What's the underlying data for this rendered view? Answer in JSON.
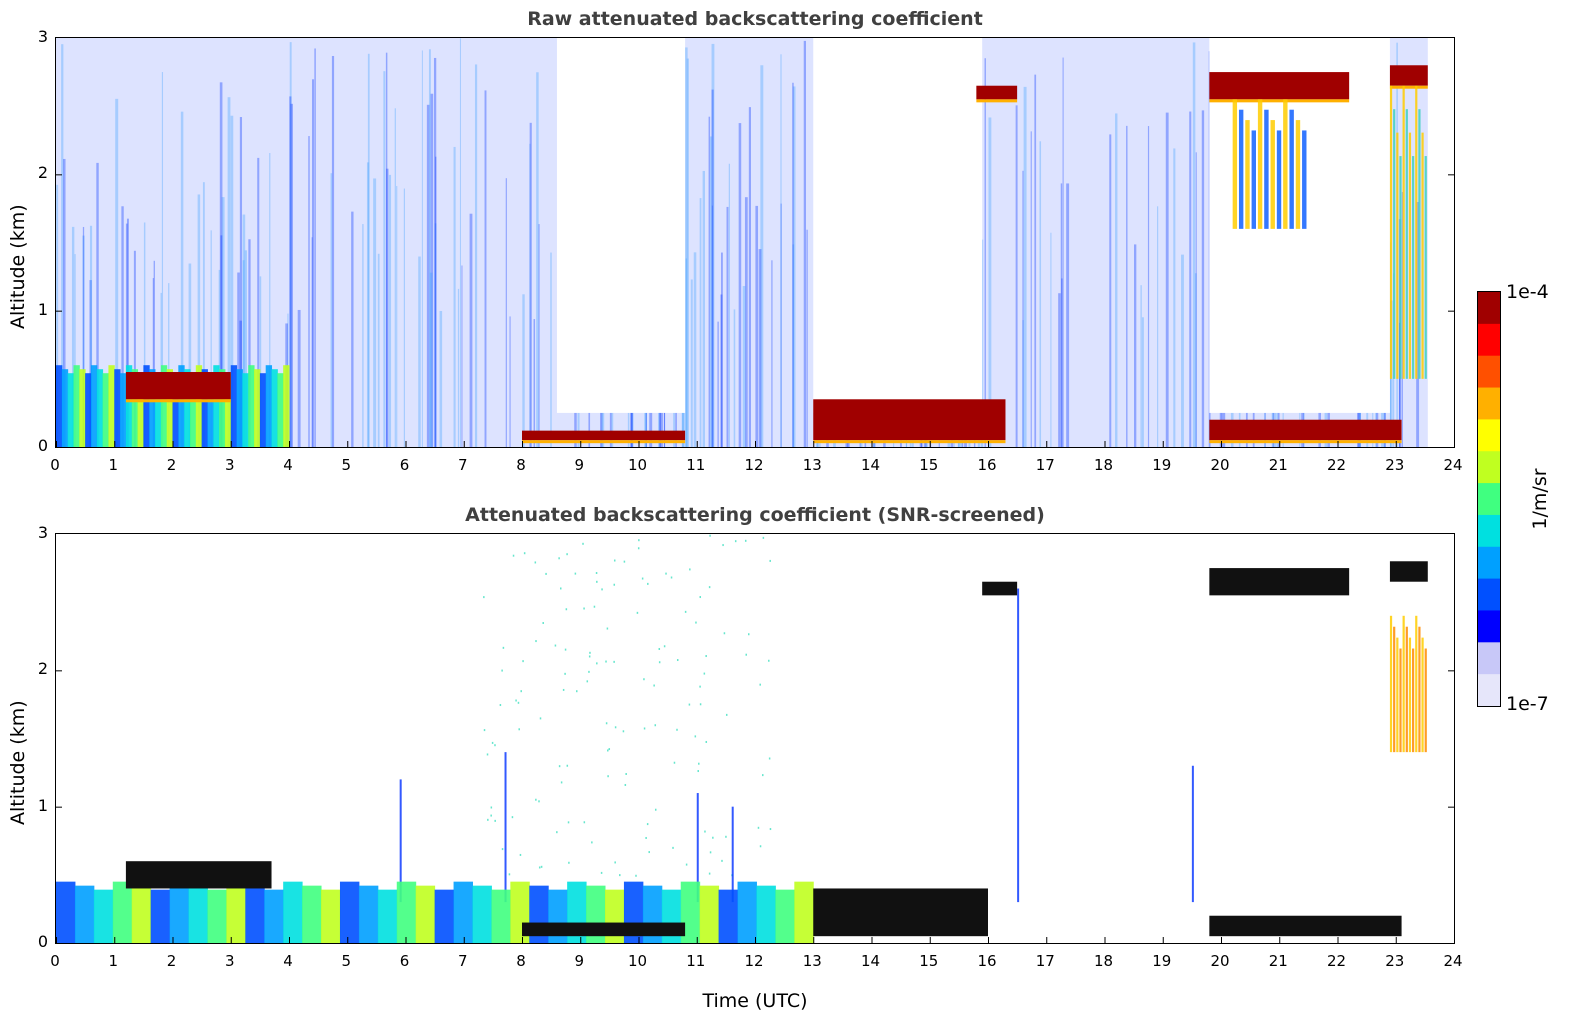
{
  "colors": {
    "background": "#ffffff",
    "title": "#404040",
    "colormap": [
      "#e6e6fa",
      "#c8c8f8",
      "#0000ff",
      "#0050ff",
      "#00a0ff",
      "#00e0e0",
      "#40ff80",
      "#c0ff20",
      "#ffff00",
      "#ffb000",
      "#ff5000",
      "#ff0000",
      "#a00000"
    ]
  },
  "colorbar": {
    "max_label": "1e-4",
    "min_label": "1e-7",
    "units_label": "1/m/sr"
  },
  "xlabel": "Time (UTC)",
  "chart_data": [
    {
      "type": "heatmap",
      "title": "Raw attenuated backscattering coefficient",
      "xlabel": "",
      "ylabel": "Altitude (km)",
      "xlim": [
        0,
        24
      ],
      "ylim": [
        0,
        3
      ],
      "xticks": [
        "0",
        "1",
        "2",
        "3",
        "4",
        "5",
        "6",
        "7",
        "8",
        "9",
        "10",
        "11",
        "12",
        "13",
        "14",
        "15",
        "16",
        "17",
        "18",
        "19",
        "20",
        "21",
        "22",
        "23",
        "24"
      ],
      "yticks": [
        "0",
        "1",
        "2",
        "3"
      ],
      "color_scale": "log",
      "data_extent_hours": [
        0,
        23.55
      ],
      "features": [
        {
          "name": "boundary layer aerosol",
          "x": [
            0,
            4.0
          ],
          "y": [
            0,
            0.6
          ],
          "level": "medium-high"
        },
        {
          "name": "low cloud",
          "x": [
            1.2,
            3.0
          ],
          "y": [
            0.35,
            0.55
          ],
          "level": "max"
        },
        {
          "name": "low cloud",
          "x": [
            8.0,
            10.8
          ],
          "y": [
            0.05,
            0.12
          ],
          "level": "max"
        },
        {
          "name": "low cloud",
          "x": [
            13.0,
            16.3
          ],
          "y": [
            0.05,
            0.35
          ],
          "level": "max"
        },
        {
          "name": "low cloud",
          "x": [
            19.8,
            23.1
          ],
          "y": [
            0.05,
            0.2
          ],
          "level": "max"
        },
        {
          "name": "mid cloud",
          "x": [
            15.8,
            16.5
          ],
          "y": [
            2.55,
            2.65
          ],
          "level": "max"
        },
        {
          "name": "mid cloud",
          "x": [
            19.8,
            22.2
          ],
          "y": [
            2.55,
            2.75
          ],
          "level": "max"
        },
        {
          "name": "mid cloud",
          "x": [
            22.9,
            23.55
          ],
          "y": [
            2.65,
            2.8
          ],
          "level": "max"
        },
        {
          "name": "precipitation/virga",
          "x": [
            20.2,
            21.5
          ],
          "y": [
            1.6,
            2.55
          ],
          "level": "medium"
        },
        {
          "name": "precipitation/virga",
          "x": [
            22.9,
            23.55
          ],
          "y": [
            0.5,
            2.65
          ],
          "level": "medium-high"
        }
      ]
    },
    {
      "type": "heatmap",
      "title": "Attenuated backscattering coefficient (SNR-screened)",
      "xlabel": "Time (UTC)",
      "ylabel": "Altitude (km)",
      "xlim": [
        0,
        24
      ],
      "ylim": [
        0,
        3
      ],
      "xticks": [
        "0",
        "1",
        "2",
        "3",
        "4",
        "5",
        "6",
        "7",
        "8",
        "9",
        "10",
        "11",
        "12",
        "13",
        "14",
        "15",
        "16",
        "17",
        "18",
        "19",
        "20",
        "21",
        "22",
        "23",
        "24"
      ],
      "yticks": [
        "0",
        "1",
        "2",
        "3"
      ],
      "color_scale": "log",
      "data_extent_hours": [
        0,
        23.55
      ],
      "features": [
        {
          "name": "boundary layer aerosol",
          "x": [
            0,
            13.0
          ],
          "y": [
            0,
            0.45
          ],
          "level": "medium"
        },
        {
          "name": "low cloud (saturated)",
          "x": [
            1.2,
            3.7
          ],
          "y": [
            0.4,
            0.6
          ],
          "level": "saturated"
        },
        {
          "name": "low cloud (saturated)",
          "x": [
            8.0,
            10.8
          ],
          "y": [
            0.05,
            0.15
          ],
          "level": "saturated"
        },
        {
          "name": "low cloud (saturated)",
          "x": [
            13.0,
            16.0
          ],
          "y": [
            0.05,
            0.4
          ],
          "level": "saturated"
        },
        {
          "name": "low cloud (saturated)",
          "x": [
            19.8,
            23.1
          ],
          "y": [
            0.05,
            0.2
          ],
          "level": "saturated"
        },
        {
          "name": "mid cloud (saturated)",
          "x": [
            15.9,
            16.5
          ],
          "y": [
            2.55,
            2.65
          ],
          "level": "saturated"
        },
        {
          "name": "mid cloud (saturated)",
          "x": [
            19.8,
            22.2
          ],
          "y": [
            2.55,
            2.75
          ],
          "level": "saturated"
        },
        {
          "name": "mid cloud (saturated)",
          "x": [
            22.9,
            23.55
          ],
          "y": [
            2.65,
            2.8
          ],
          "level": "saturated"
        },
        {
          "name": "virga",
          "x": [
            22.9,
            23.55
          ],
          "y": [
            1.4,
            2.4
          ],
          "level": "high"
        }
      ]
    }
  ]
}
